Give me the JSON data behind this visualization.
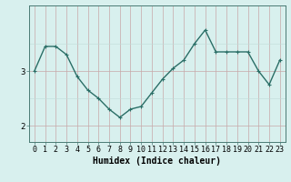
{
  "x": [
    0,
    1,
    2,
    3,
    4,
    5,
    6,
    7,
    8,
    9,
    10,
    11,
    12,
    13,
    14,
    15,
    16,
    17,
    18,
    19,
    20,
    21,
    22,
    23
  ],
  "y": [
    3.0,
    3.45,
    3.45,
    3.3,
    2.9,
    2.65,
    2.5,
    2.3,
    2.15,
    2.3,
    2.35,
    2.6,
    2.85,
    3.05,
    3.2,
    3.5,
    3.75,
    3.35,
    3.35,
    3.35,
    3.35,
    3.0,
    2.75,
    3.2
  ],
  "xlabel": "Humidex (Indice chaleur)",
  "yticks": [
    2,
    3
  ],
  "ylim": [
    1.7,
    4.2
  ],
  "xlim": [
    -0.5,
    23.5
  ],
  "bg_color": "#d8f0ee",
  "vgrid_color": "#c8a8a8",
  "hgrid_color": "#c8a8a8",
  "hgrid_minor_color": "#c0dcd8",
  "line_color": "#2a6e66",
  "marker_color": "#2a6e66",
  "axis_color": "#4a7a74",
  "tick_label_color": "#000000",
  "xlabel_color": "#000000",
  "xlabel_fontsize": 7,
  "tick_fontsize": 6,
  "ytick_labels": [
    "2",
    "3"
  ],
  "line_width": 1.0,
  "marker_size": 3.0
}
